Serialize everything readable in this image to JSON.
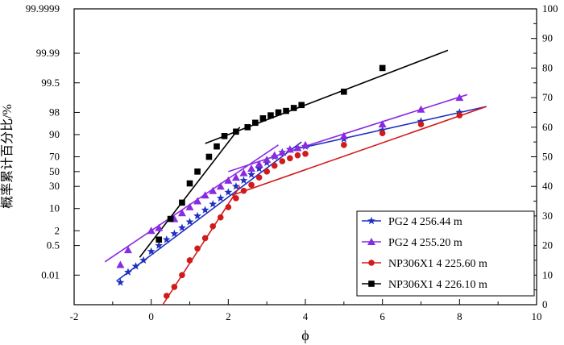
{
  "chart_data": {
    "type": "scatter",
    "title": "",
    "xlabel": "ϕ",
    "ylabel": "概率累计百分比/%",
    "xlim": [
      -2,
      10
    ],
    "x_ticks": [
      -2,
      0,
      2,
      4,
      6,
      8,
      10
    ],
    "y_left_ticks": [
      "0.01",
      "0.5",
      "2",
      "10",
      "30",
      "50",
      "70",
      "90",
      "98",
      "99.5",
      "99.99",
      "99.9999"
    ],
    "y_left_tick_positions": [
      10,
      20,
      25,
      32.5,
      40,
      45,
      50,
      57.5,
      65,
      75,
      85,
      100
    ],
    "ylim_right": [
      0,
      100
    ],
    "y_right_ticks": [
      0,
      10,
      20,
      30,
      40,
      50,
      60,
      70,
      80,
      90,
      100
    ],
    "grid": false,
    "legend_position": "bottom-right",
    "series": [
      {
        "name": "PG2",
        "depth": "4 256.44 m",
        "marker": "star",
        "color": "#1f2fbf",
        "x": [
          -0.8,
          -0.6,
          -0.4,
          -0.2,
          0.0,
          0.2,
          0.4,
          0.6,
          0.8,
          1.0,
          1.2,
          1.4,
          1.6,
          1.8,
          2.0,
          2.2,
          2.4,
          2.6,
          2.8,
          3.0,
          3.2,
          3.4,
          3.6,
          3.8,
          4.0,
          5.0,
          6.0,
          7.0,
          8.0
        ],
        "y": [
          7.5,
          11,
          13,
          15,
          18,
          20,
          22,
          24,
          26,
          28,
          30,
          32,
          34,
          36,
          38,
          40,
          42,
          44,
          46,
          48,
          50,
          51.5,
          52.5,
          53,
          53.5,
          56,
          59,
          62,
          65
        ],
        "fit_segments": [
          {
            "x": [
              -0.9,
              3.9
            ],
            "y": [
              8,
              55
            ]
          },
          {
            "x": [
              3.9,
              8.7
            ],
            "y": [
              53,
              67
            ]
          }
        ]
      },
      {
        "name": "PG2",
        "depth": "4 255.20 m",
        "marker": "triangle",
        "color": "#8a2be2",
        "x": [
          -0.8,
          -0.6,
          0.0,
          0.2,
          0.6,
          0.8,
          1.0,
          1.2,
          1.4,
          1.6,
          1.8,
          2.0,
          2.2,
          2.4,
          2.6,
          2.8,
          3.0,
          3.2,
          3.4,
          3.6,
          3.8,
          4.0,
          5.0,
          6.0,
          7.0,
          8.0
        ],
        "y": [
          13.5,
          18.5,
          25,
          26,
          29,
          31,
          33,
          35,
          37,
          38.5,
          40,
          42,
          43,
          44.5,
          46,
          47.5,
          49,
          50.5,
          51.5,
          52.5,
          53,
          54,
          57,
          61,
          66,
          70
        ],
        "fit_segments": [
          {
            "x": [
              -1.2,
              3.3
            ],
            "y": [
              14.5,
              54
            ]
          },
          {
            "x": [
              2.0,
              3.4
            ],
            "y": [
              45,
              51
            ]
          },
          {
            "x": [
              3.5,
              8.2
            ],
            "y": [
              51.5,
              71
            ]
          }
        ]
      },
      {
        "name": "NP306X1",
        "depth": "4 225.60 m",
        "marker": "circle",
        "color": "#d11a1a",
        "x": [
          0.4,
          0.6,
          0.8,
          1.0,
          1.2,
          1.4,
          1.6,
          1.8,
          2.0,
          2.2,
          2.4,
          2.6,
          2.8,
          3.0,
          3.2,
          3.4,
          3.6,
          3.8,
          4.0,
          5.0,
          6.0,
          7.0,
          8.0
        ],
        "y": [
          3,
          6,
          10,
          15,
          19,
          22.5,
          26.5,
          29.5,
          33,
          36,
          38.5,
          40.5,
          43,
          45,
          47,
          48.5,
          49.5,
          50.5,
          51,
          54,
          58,
          61,
          64
        ],
        "fit_segments": [
          {
            "x": [
              0.3,
              2.3
            ],
            "y": [
              0,
              40
            ]
          },
          {
            "x": [
              2.1,
              8.7
            ],
            "y": [
              37,
              67
            ]
          }
        ]
      },
      {
        "name": "NP306X1",
        "depth": "4 226.10 m",
        "marker": "square",
        "color": "#000000",
        "x": [
          0.2,
          0.5,
          0.8,
          1.0,
          1.2,
          1.5,
          1.7,
          1.9,
          2.2,
          2.5,
          2.7,
          2.9,
          3.1,
          3.3,
          3.5,
          3.7,
          3.9,
          5.0,
          6.0
        ],
        "y": [
          22,
          29,
          34.5,
          41,
          45,
          50,
          53.5,
          57,
          58.5,
          60,
          61.5,
          63,
          64,
          65,
          65.5,
          66.5,
          67.5,
          72,
          80
        ],
        "fit_segments": [
          {
            "x": [
              -0.3,
              2.3
            ],
            "y": [
              16,
              60
            ]
          },
          {
            "x": [
              1.4,
              7.7
            ],
            "y": [
              54.5,
              86
            ]
          }
        ]
      }
    ]
  }
}
